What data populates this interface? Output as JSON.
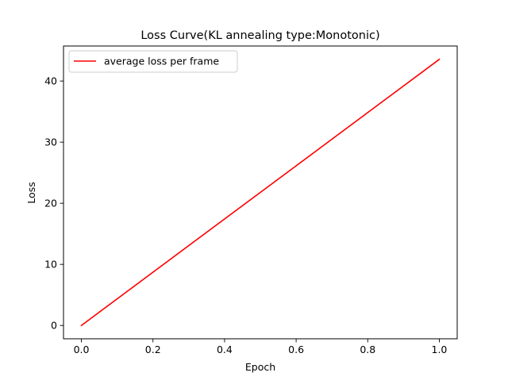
{
  "chart_data": {
    "type": "line",
    "title": "Loss Curve(KL annealing type:Monotonic)",
    "xlabel": "Epoch",
    "ylabel": "Loss",
    "xlim": [
      -0.05,
      1.05
    ],
    "ylim": [
      -2.18,
      45.73
    ],
    "xticks": [
      0.0,
      0.2,
      0.4,
      0.6,
      0.8,
      1.0
    ],
    "xtick_labels": [
      "0.0",
      "0.2",
      "0.4",
      "0.6",
      "0.8",
      "1.0"
    ],
    "yticks": [
      0,
      10,
      20,
      30,
      40
    ],
    "ytick_labels": [
      "0",
      "10",
      "20",
      "30",
      "40"
    ],
    "grid": false,
    "legend_position": "top-left",
    "series": [
      {
        "name": "average loss per frame",
        "color": "#ff0000",
        "x": [
          0.0,
          1.0
        ],
        "y": [
          0.0,
          43.55
        ]
      }
    ]
  }
}
